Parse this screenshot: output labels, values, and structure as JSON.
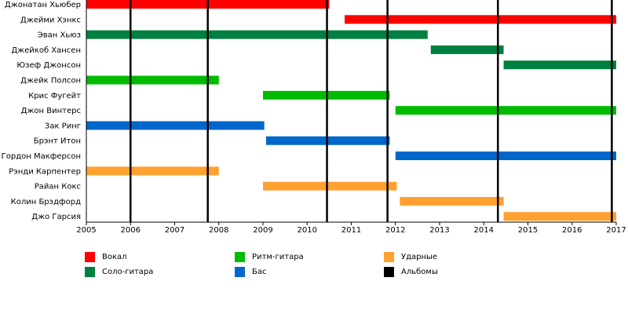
{
  "chart_data": {
    "type": "timeline",
    "x_range": [
      2005,
      2017
    ],
    "x_ticks": [
      2005,
      2006,
      2007,
      2008,
      2009,
      2010,
      2011,
      2012,
      2013,
      2014,
      2015,
      2016,
      2017
    ],
    "roles": {
      "vocal": {
        "label": "Вокал",
        "color": "#ff0000"
      },
      "lead": {
        "label": "Соло-гитара",
        "color": "#008040"
      },
      "rhythm": {
        "label": "Ритм-гитара",
        "color": "#00bb00"
      },
      "bass": {
        "label": "Бас",
        "color": "#0066cc"
      },
      "drums": {
        "label": "Ударные",
        "color": "#ffa030"
      },
      "albums": {
        "label": "Альбомы",
        "color": "#000000"
      }
    },
    "members": [
      {
        "name": "Джонатан Хьюбер",
        "role": "vocal",
        "start": 2005.0,
        "end": 2010.5
      },
      {
        "name": "Джейми Хэнкс",
        "role": "vocal",
        "start": 2010.85,
        "end": 2017.0
      },
      {
        "name": "Эван Хьюз",
        "role": "lead",
        "start": 2005.0,
        "end": 2012.73
      },
      {
        "name": "Джейкоб Хансен",
        "role": "lead",
        "start": 2012.8,
        "end": 2014.45
      },
      {
        "name": "Юзеф Джонсон",
        "role": "lead",
        "start": 2014.45,
        "end": 2017.0
      },
      {
        "name": "Джейк Полсон",
        "role": "rhythm",
        "start": 2005.0,
        "end": 2008.0
      },
      {
        "name": "Крис Фугейт",
        "role": "rhythm",
        "start": 2009.0,
        "end": 2011.87
      },
      {
        "name": "Джон Винтерс",
        "role": "rhythm",
        "start": 2012.0,
        "end": 2017.0
      },
      {
        "name": "Зак Ринг",
        "role": "bass",
        "start": 2005.0,
        "end": 2009.03
      },
      {
        "name": "Брэнт Итон",
        "role": "bass",
        "start": 2009.07,
        "end": 2011.87
      },
      {
        "name": "Гордон Макферсон",
        "role": "bass",
        "start": 2012.0,
        "end": 2017.0
      },
      {
        "name": "Рэнди Карпентер",
        "role": "drums",
        "start": 2005.0,
        "end": 2008.0
      },
      {
        "name": "Райан Кокс",
        "role": "drums",
        "start": 2009.0,
        "end": 2012.03
      },
      {
        "name": "Колин Брэдфорд",
        "role": "drums",
        "start": 2012.1,
        "end": 2014.45
      },
      {
        "name": "Джо Гарсия",
        "role": "drums",
        "start": 2014.45,
        "end": 2017.0
      }
    ],
    "albums": [
      2006.0,
      2007.75,
      2010.45,
      2011.82,
      2014.32,
      2016.9
    ],
    "legend": [
      {
        "role": "vocal"
      },
      {
        "role": "rhythm"
      },
      {
        "role": "drums"
      },
      {
        "role": "lead"
      },
      {
        "role": "bass"
      },
      {
        "role": "albums"
      }
    ]
  }
}
